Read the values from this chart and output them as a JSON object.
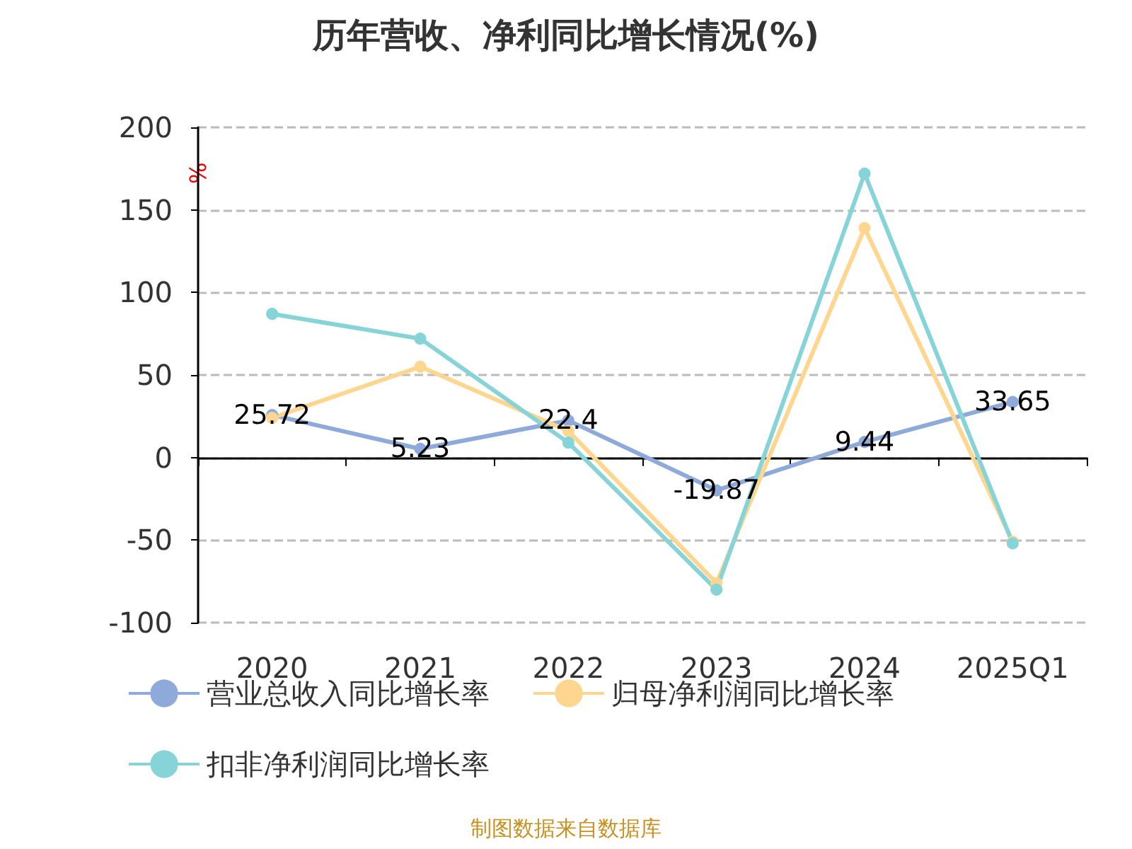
{
  "chart_data": {
    "type": "line",
    "title": "历年营收、净利同比增长情况(%)",
    "ylabel": "%",
    "categories": [
      "2020",
      "2021",
      "2022",
      "2023",
      "2024",
      "2025Q1"
    ],
    "series": [
      {
        "name": "营业总收入同比增长率",
        "color": "#8eaadb",
        "values": [
          25.72,
          5.23,
          22.4,
          -19.87,
          9.44,
          33.65
        ],
        "value_labels": [
          "25.72",
          "5.23",
          "22.4",
          "-19.87",
          "9.44",
          "33.65"
        ]
      },
      {
        "name": "归母净利润同比增长率",
        "color": "#ffd68f",
        "values": [
          24,
          55,
          16,
          -76,
          139,
          -51
        ]
      },
      {
        "name": "扣非净利润同比增长率",
        "color": "#86d4d8",
        "values": [
          87,
          72,
          9,
          -80,
          172,
          -52
        ]
      }
    ],
    "ylim": [
      -100,
      200
    ],
    "yticks": [
      -100,
      -50,
      0,
      50,
      100,
      150,
      200
    ],
    "grid": "y",
    "legend": "bottom",
    "marker": "circle",
    "line_style": "solid",
    "annotations": [
      "制图数据来自数据库"
    ]
  }
}
